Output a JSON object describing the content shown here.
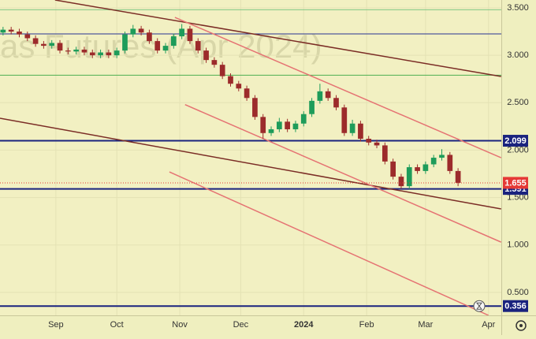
{
  "chart_data": {
    "type": "candlestick",
    "watermark": "as Futures (Apr 2024)",
    "x": [
      -26,
      -22,
      -18,
      -14,
      -10,
      -6,
      -2,
      2,
      6,
      10,
      14,
      18,
      22,
      26,
      30,
      34,
      38,
      42,
      46,
      50,
      54,
      58,
      62,
      66,
      70,
      74,
      78,
      82,
      86,
      90,
      94,
      98,
      102,
      106,
      110,
      114,
      118,
      122,
      126,
      130,
      134,
      138,
      142,
      146,
      150,
      154,
      158,
      162,
      166,
      170,
      174,
      178,
      182,
      186,
      190,
      194,
      198
    ],
    "open": [
      3.24,
      3.27,
      3.25,
      3.22,
      3.18,
      3.12,
      3.1,
      3.13,
      3.05,
      3.04,
      3.06,
      3.03,
      3.0,
      3.03,
      3.0,
      3.05,
      3.22,
      3.28,
      3.24,
      3.15,
      3.05,
      3.1,
      3.2,
      3.28,
      3.15,
      3.05,
      2.95,
      2.9,
      2.78,
      2.7,
      2.65,
      2.55,
      2.35,
      2.18,
      2.22,
      2.3,
      2.22,
      2.28,
      2.38,
      2.52,
      2.62,
      2.55,
      2.45,
      2.18,
      2.28,
      2.12,
      2.08,
      2.05,
      1.88,
      1.72,
      1.62,
      1.82,
      1.78,
      1.85,
      1.92,
      1.95,
      1.78
    ],
    "high": [
      3.3,
      3.3,
      3.28,
      3.25,
      3.21,
      3.15,
      3.16,
      3.16,
      3.08,
      3.09,
      3.09,
      3.06,
      3.06,
      3.06,
      3.08,
      3.25,
      3.32,
      3.31,
      3.27,
      3.18,
      3.13,
      3.23,
      3.33,
      3.31,
      3.18,
      3.08,
      2.98,
      2.93,
      2.81,
      2.73,
      2.68,
      2.58,
      2.38,
      2.25,
      2.34,
      2.33,
      2.31,
      2.41,
      2.55,
      2.7,
      2.65,
      2.58,
      2.48,
      2.32,
      2.31,
      2.15,
      2.11,
      2.08,
      1.91,
      1.75,
      1.85,
      1.85,
      1.88,
      1.95,
      2.01,
      1.98,
      1.81
    ],
    "low": [
      3.21,
      3.22,
      3.19,
      3.15,
      3.09,
      3.07,
      3.07,
      3.02,
      3.01,
      3.01,
      3.0,
      2.97,
      2.97,
      2.97,
      2.97,
      3.02,
      3.19,
      3.21,
      3.12,
      3.02,
      3.02,
      3.07,
      3.17,
      3.12,
      3.02,
      2.92,
      2.87,
      2.75,
      2.67,
      2.62,
      2.52,
      2.32,
      2.12,
      2.15,
      2.19,
      2.19,
      2.19,
      2.25,
      2.35,
      2.49,
      2.52,
      2.42,
      2.15,
      2.15,
      2.09,
      2.05,
      2.02,
      1.85,
      1.69,
      1.59,
      1.59,
      1.75,
      1.75,
      1.82,
      1.89,
      1.75,
      1.62
    ],
    "close": [
      3.27,
      3.25,
      3.22,
      3.18,
      3.12,
      3.1,
      3.13,
      3.05,
      3.04,
      3.06,
      3.03,
      3.0,
      3.03,
      3.0,
      3.05,
      3.22,
      3.28,
      3.24,
      3.15,
      3.05,
      3.1,
      3.2,
      3.28,
      3.15,
      3.05,
      2.95,
      2.9,
      2.78,
      2.7,
      2.65,
      2.55,
      2.35,
      2.18,
      2.22,
      2.3,
      2.22,
      2.28,
      2.38,
      2.52,
      2.62,
      2.55,
      2.45,
      2.18,
      2.28,
      2.12,
      2.08,
      2.05,
      1.88,
      1.72,
      1.62,
      1.82,
      1.78,
      1.85,
      1.92,
      1.95,
      1.78,
      1.655
    ],
    "up_color": "#1e9c5a",
    "down_color": "#9c2b2b",
    "last_price_color": "#e53935",
    "xlim": [
      -27.5,
      219.3
    ],
    "ylim": [
      0.258,
      3.583
    ],
    "xticks": [
      {
        "value": 0,
        "label": "Sep"
      },
      {
        "value": 30,
        "label": "Oct"
      },
      {
        "value": 61,
        "label": "Nov"
      },
      {
        "value": 91,
        "label": "Dec"
      },
      {
        "value": 122,
        "label": "2024"
      },
      {
        "value": 153,
        "label": "Feb"
      },
      {
        "value": 182,
        "label": "Mar"
      },
      {
        "value": 213,
        "label": "Apr"
      }
    ],
    "yticks": [
      {
        "value": 0.5,
        "label": "0.500"
      },
      {
        "value": 1.0,
        "label": "1.000"
      },
      {
        "value": 1.5,
        "label": "1.500"
      },
      {
        "value": 2.0,
        "label": "2.000"
      },
      {
        "value": 2.5,
        "label": "2.500"
      },
      {
        "value": 3.0,
        "label": "3.000"
      },
      {
        "value": 3.5,
        "label": "3.500"
      }
    ],
    "grid": true,
    "levels": [
      {
        "value": 3.48,
        "color": "#81c784",
        "width": 1,
        "labeled": false
      },
      {
        "value": 3.226,
        "color": "#283593",
        "width": 1,
        "labeled": false
      },
      {
        "value": 2.79,
        "color": "#4caf50",
        "width": 1,
        "labeled": false
      },
      {
        "value": 2.099,
        "color": "#1a237e",
        "width": 2,
        "labeled": true
      },
      {
        "value": 1.591,
        "color": "#1a237e",
        "width": 2,
        "labeled": true
      },
      {
        "value": 0.356,
        "color": "#1a237e",
        "width": 2,
        "labeled": true
      }
    ],
    "trendlines": [
      {
        "color": "#7b2d26",
        "x": [
          -0.4,
          219.2
        ],
        "y": [
          3.583,
          2.777
        ]
      },
      {
        "color": "#7b2d26",
        "x": [
          -27.5,
          219.2
        ],
        "y": [
          2.336,
          1.38
        ]
      },
      {
        "color": "#e57373",
        "x": [
          58.6,
          219.2
        ],
        "y": [
          3.4,
          1.92
        ]
      },
      {
        "color": "#e57373",
        "x": [
          63.6,
          219.2
        ],
        "y": [
          2.48,
          1.03
        ]
      },
      {
        "color": "#e57373",
        "x": [
          55.9,
          213
        ],
        "y": [
          1.77,
          0.258
        ]
      }
    ]
  }
}
